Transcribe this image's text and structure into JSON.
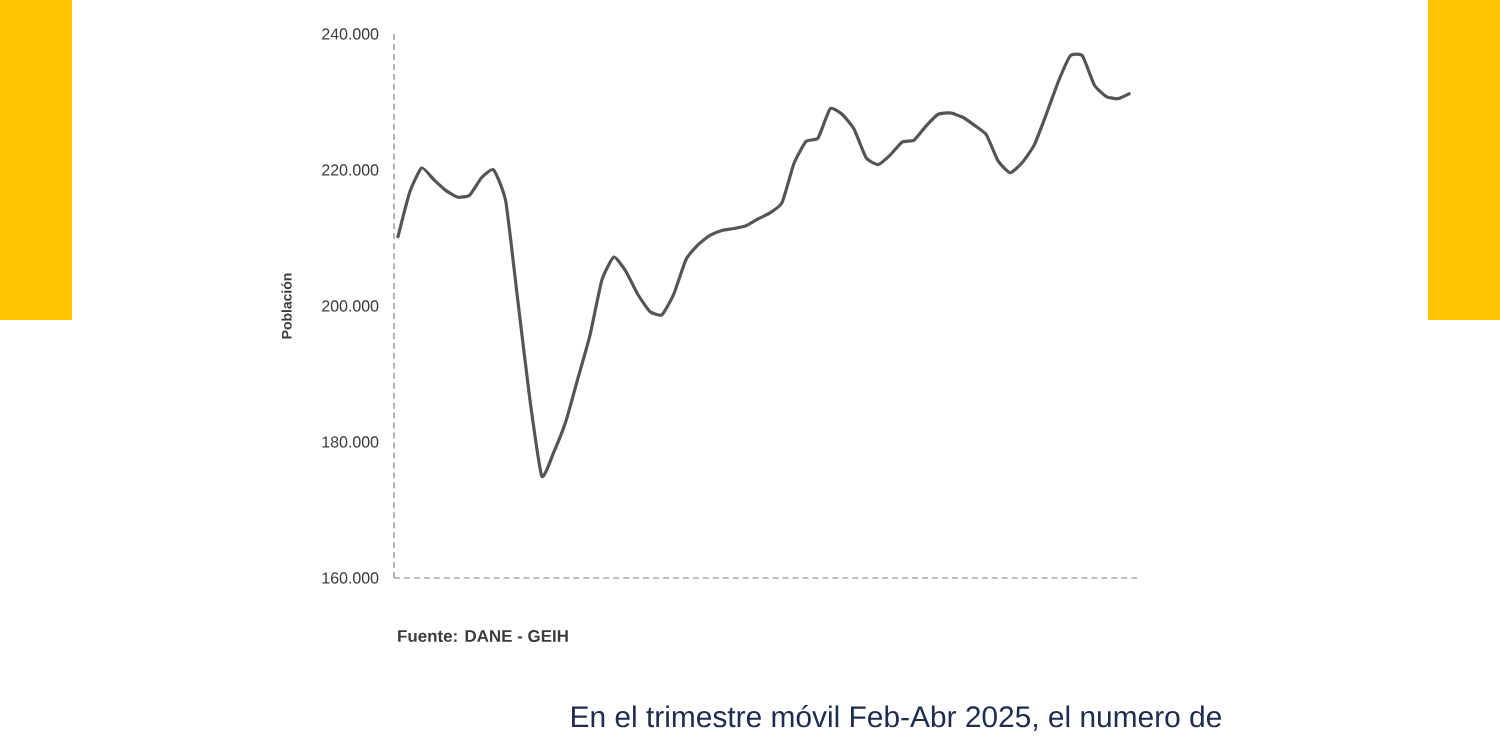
{
  "chart_data": {
    "type": "line",
    "ylabel": "Población",
    "categories": [
      null,
      null,
      null,
      null,
      null,
      null,
      null,
      null,
      null,
      null,
      null,
      null,
      null,
      null,
      null,
      null,
      null,
      null,
      null,
      null,
      null,
      null,
      null,
      null,
      null,
      null,
      null,
      null,
      null,
      null,
      null,
      null,
      null,
      null,
      null,
      null,
      null,
      null,
      null,
      null,
      null,
      null,
      null,
      null,
      null,
      null,
      null,
      null,
      null,
      null,
      null,
      null,
      null,
      null,
      null,
      null,
      null,
      null,
      null,
      null,
      null,
      null
    ],
    "series": [
      {
        "color": "#555555",
        "values": [
          210000,
          216700,
          220300,
          218600,
          217000,
          216000,
          216300,
          218900,
          220000,
          215400,
          200900,
          186400,
          175000,
          178500,
          183000,
          189300,
          195600,
          203800,
          207200,
          205100,
          201700,
          199200,
          198700,
          201800,
          206800,
          209000,
          210400,
          211100,
          211400,
          211800,
          212800,
          213700,
          215200,
          221000,
          224200,
          224700,
          229000,
          228200,
          226000,
          221800,
          220800,
          222200,
          224100,
          224400,
          226500,
          228200,
          228400,
          227800,
          226600,
          225200,
          221300,
          219600,
          221100,
          223700,
          228200,
          233000,
          236800,
          236800,
          232500,
          230800,
          230500,
          231300
        ]
      }
    ],
    "ylim": [
      160000,
      240000
    ],
    "yticks": [
      {
        "value": 160000,
        "label": "160.000"
      },
      {
        "value": 180000,
        "label": "180.000"
      },
      {
        "value": 200000,
        "label": "200.000"
      },
      {
        "value": 220000,
        "label": "220.000"
      },
      {
        "value": 240000,
        "label": "240.000"
      }
    ],
    "tick_labels": "y",
    "annotations": [
      "Fuente: DANE - GEIH",
      "En el trimestre móvil Feb-Abr 2025, el numero de"
    ]
  }
}
